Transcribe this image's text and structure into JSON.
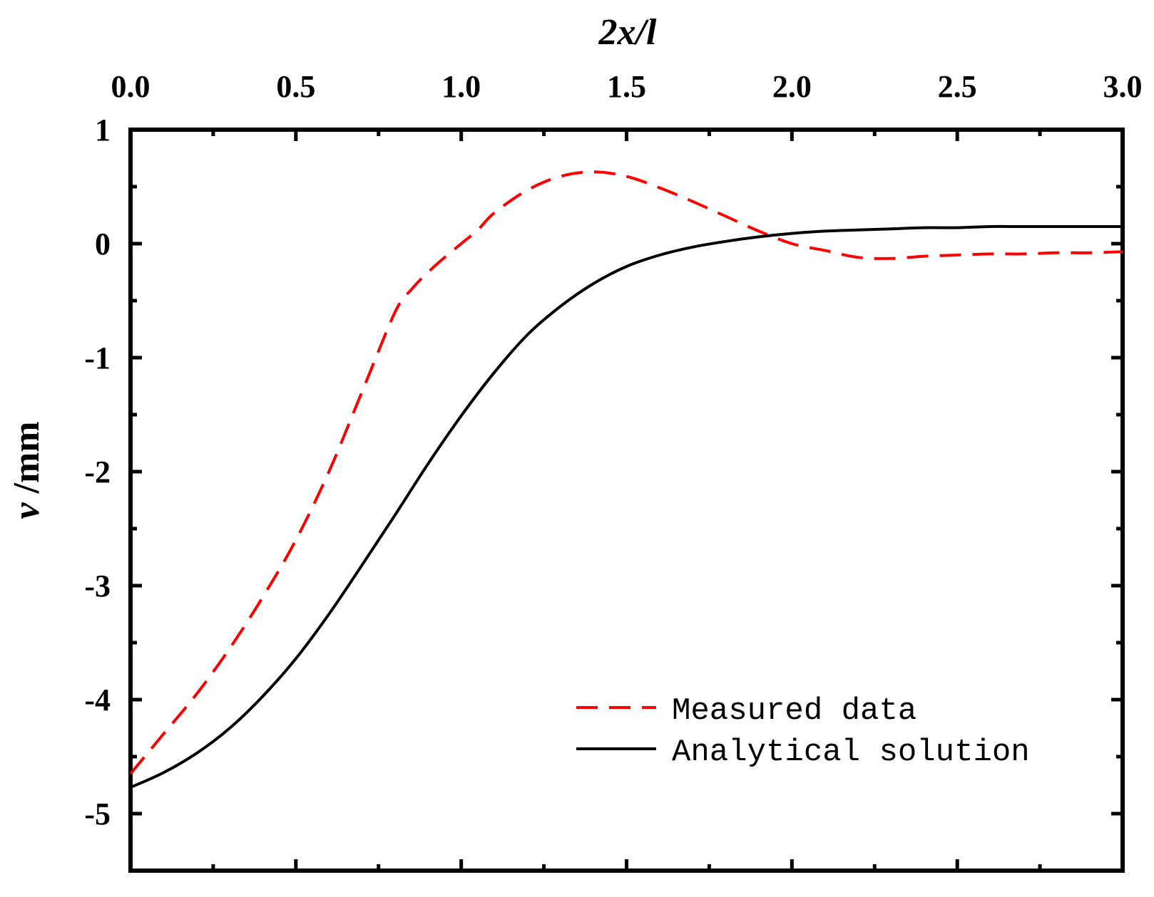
{
  "chart_data": {
    "type": "line",
    "title": "",
    "xlabel": "2x/l",
    "ylabel_var": "v",
    "ylabel_unit": " /mm",
    "xlim": [
      0.0,
      3.0
    ],
    "ylim": [
      -5.5,
      1.0
    ],
    "xticks": [
      0.0,
      0.5,
      1.0,
      1.5,
      2.0,
      2.5,
      3.0
    ],
    "xtick_labels": [
      "0.0",
      "0.5",
      "1.0",
      "1.5",
      "2.0",
      "2.5",
      "3.0"
    ],
    "yticks": [
      1,
      0,
      -1,
      -2,
      -3,
      -4,
      -5
    ],
    "ytick_labels": [
      "1",
      "0",
      "-1",
      "-2",
      "-3",
      "-4",
      "-5"
    ],
    "x_axis_position": "top",
    "grid": false,
    "legend_position": "bottom-right",
    "series": [
      {
        "name": "Measured data",
        "color": "#ff0000",
        "style": "dashed",
        "x": [
          0.0,
          0.1,
          0.2,
          0.3,
          0.4,
          0.5,
          0.6,
          0.7,
          0.8,
          0.85,
          0.9,
          0.95,
          1.0,
          1.05,
          1.1,
          1.2,
          1.3,
          1.4,
          1.5,
          1.6,
          1.7,
          1.8,
          1.9,
          2.0,
          2.1,
          2.2,
          2.3,
          2.4,
          2.5,
          2.6,
          2.7,
          2.8,
          2.9,
          3.0
        ],
        "y": [
          -4.65,
          -4.3,
          -3.95,
          -3.55,
          -3.1,
          -2.6,
          -2.0,
          -1.3,
          -0.6,
          -0.4,
          -0.25,
          -0.12,
          0.0,
          0.12,
          0.27,
          0.47,
          0.59,
          0.63,
          0.59,
          0.49,
          0.37,
          0.24,
          0.11,
          0.0,
          -0.06,
          -0.12,
          -0.13,
          -0.11,
          -0.1,
          -0.09,
          -0.09,
          -0.08,
          -0.08,
          -0.07
        ]
      },
      {
        "name": "Analytical solution",
        "color": "#000000",
        "style": "solid",
        "x": [
          0.0,
          0.1,
          0.2,
          0.3,
          0.4,
          0.5,
          0.6,
          0.7,
          0.8,
          0.9,
          1.0,
          1.1,
          1.2,
          1.3,
          1.4,
          1.5,
          1.6,
          1.7,
          1.8,
          1.9,
          2.0,
          2.1,
          2.2,
          2.3,
          2.4,
          2.5,
          2.6,
          2.7,
          2.8,
          2.9,
          3.0
        ],
        "y": [
          -4.77,
          -4.64,
          -4.47,
          -4.25,
          -3.97,
          -3.64,
          -3.25,
          -2.82,
          -2.38,
          -1.93,
          -1.51,
          -1.13,
          -0.8,
          -0.55,
          -0.35,
          -0.2,
          -0.1,
          -0.03,
          0.02,
          0.06,
          0.09,
          0.11,
          0.12,
          0.13,
          0.14,
          0.14,
          0.15,
          0.15,
          0.15,
          0.15,
          0.15
        ]
      }
    ]
  }
}
